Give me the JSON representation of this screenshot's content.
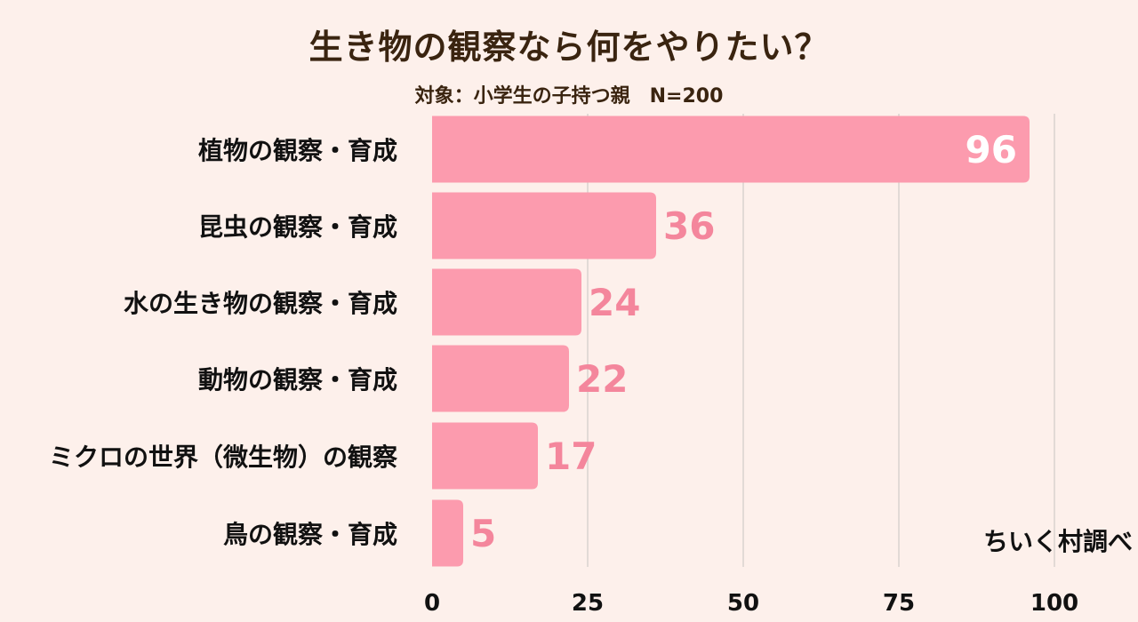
{
  "chart_data": {
    "type": "bar",
    "orientation": "horizontal",
    "title": "生き物の観察なら何をやりたい？",
    "subtitle": "対象：小学生の子持つ親　N=200",
    "categories": [
      "植物の観察・育成",
      "昆虫の観察・育成",
      "水の生き物の観察・育成",
      "動物の観察・育成",
      "ミクロの世界（微生物）の観察",
      "鳥の観察・育成"
    ],
    "values": [
      96,
      36,
      24,
      22,
      17,
      5
    ],
    "xlim": [
      0,
      100
    ],
    "xticks": [
      "0",
      "25",
      "50",
      "75",
      "100"
    ],
    "grid": true,
    "source": "ちいく村調べ",
    "colors": {
      "bar": "#fc9bae",
      "value_label_outside": "#f4869c",
      "value_label_inside": "#ffffff",
      "title": "#3a2410",
      "category_label": "#111111",
      "gridline": "#d9d2cf",
      "background": "#fdf0eb"
    }
  }
}
